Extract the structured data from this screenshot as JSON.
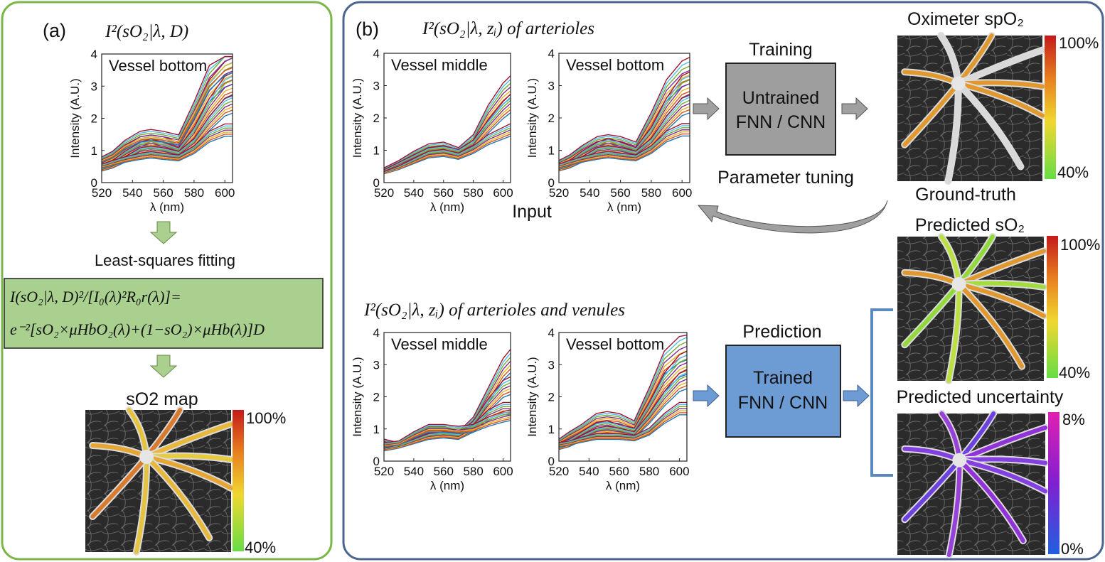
{
  "colors": {
    "panel_a": "#7ab648",
    "panel_b": "#4a6590",
    "gray_box": "#9e9e9e",
    "blue_box": "#6d9bd4",
    "formula_box": "#a9d08e",
    "arrow": "#a0a0a0",
    "green_arrow": "#a9d08e",
    "blue_arrow": "#6d9bd4",
    "bracket": "#5b8ac0"
  },
  "panel_a": {
    "label": "(a)",
    "formula_title": "I²(sO₂|λ, D)",
    "fitting_label": "Least-squares fitting",
    "formula_line1": "I(sO₂|λ, D)²/[I₀(λ)²R₀r(λ)]=",
    "formula_line2": "e⁻²[sO₂×μHbO₂(λ)+(1−sO₂)×μHb(λ)]D",
    "map_title": "sO2 map",
    "cb_top": "100%",
    "cb_bottom": "40%"
  },
  "panel_b": {
    "label": "(b)",
    "top_title": "I²(sO₂|λ, zᵢ) of arterioles",
    "bottom_title": "I²(sO₂|λ, zᵢ) of arterioles and venules",
    "input_label": "Input",
    "training_label": "Training",
    "untrained_line1": "Untrained",
    "untrained_line2": "FNN / CNN",
    "param_tuning": "Parameter tuning",
    "prediction_label": "Prediction",
    "trained_line1": "Trained",
    "trained_line2": "FNN / CNN",
    "oximeter_title": "Oximeter spO₂",
    "ground_truth": "Ground-truth",
    "pred_so2_title": "Predicted sO₂",
    "pred_unc_title": "Predicted uncertainty",
    "cb1_top": "100%",
    "cb1_bottom": "40%",
    "cb2_top": "100%",
    "cb2_bottom": "40%",
    "cb3_top": "8%",
    "cb3_bottom": "0%"
  },
  "chart_data": [
    {
      "id": "a_bottom",
      "type": "line",
      "title": "Vessel bottom",
      "xlabel": "λ (nm)",
      "ylabel": "Intensity (A.U.)",
      "xlim": [
        520,
        605
      ],
      "ylim": [
        0,
        4
      ],
      "x": [
        520,
        527,
        535,
        545,
        552,
        560,
        570,
        580,
        590,
        600,
        605
      ],
      "series": [
        {
          "values": [
            0.6,
            0.75,
            1.0,
            1.25,
            1.3,
            1.25,
            1.1,
            1.9,
            2.8,
            3.3,
            3.4
          ]
        },
        {
          "values": [
            0.5,
            0.6,
            0.85,
            1.1,
            1.2,
            1.1,
            0.95,
            1.5,
            2.3,
            2.9,
            3.0
          ]
        },
        {
          "values": [
            0.4,
            0.5,
            0.7,
            0.95,
            1.0,
            0.95,
            0.85,
            1.2,
            1.8,
            2.3,
            2.4
          ]
        },
        {
          "values": [
            0.5,
            0.6,
            0.7,
            0.8,
            0.85,
            0.8,
            0.75,
            1.0,
            1.4,
            1.6,
            1.6
          ]
        },
        {
          "values": [
            0.7,
            0.85,
            1.15,
            1.4,
            1.45,
            1.4,
            1.3,
            2.2,
            3.2,
            3.7,
            3.8
          ]
        }
      ]
    },
    {
      "id": "b_top_middle",
      "type": "line",
      "title": "Vessel middle",
      "xlabel": "λ (nm)",
      "ylabel": "Intensity (A.U.)",
      "xlim": [
        520,
        605
      ],
      "ylim": [
        0,
        4
      ],
      "x": [
        520,
        530,
        540,
        550,
        560,
        570,
        580,
        590,
        600,
        605
      ],
      "series": [
        {
          "values": [
            0.4,
            0.6,
            0.85,
            1.05,
            1.1,
            0.95,
            1.3,
            2.1,
            2.7,
            2.9
          ]
        },
        {
          "values": [
            0.35,
            0.55,
            0.75,
            0.95,
            1.0,
            0.9,
            1.15,
            1.7,
            2.2,
            2.4
          ]
        },
        {
          "values": [
            0.3,
            0.45,
            0.65,
            0.85,
            0.9,
            0.8,
            1.0,
            1.3,
            1.5,
            1.6
          ]
        }
      ]
    },
    {
      "id": "b_top_bottom",
      "type": "line",
      "title": "Vessel bottom",
      "xlabel": "λ (nm)",
      "ylabel": "Intensity (A.U.)",
      "xlim": [
        520,
        605
      ],
      "ylim": [
        0,
        4
      ],
      "x": [
        520,
        527,
        535,
        545,
        552,
        560,
        570,
        580,
        590,
        600,
        605
      ],
      "series": [
        {
          "values": [
            0.6,
            0.75,
            1.0,
            1.25,
            1.3,
            1.25,
            1.1,
            1.9,
            2.8,
            3.3,
            3.4
          ]
        },
        {
          "values": [
            0.5,
            0.6,
            0.85,
            1.1,
            1.2,
            1.1,
            0.95,
            1.5,
            2.3,
            2.9,
            3.0
          ]
        },
        {
          "values": [
            0.4,
            0.5,
            0.7,
            0.95,
            1.0,
            0.95,
            0.85,
            1.2,
            1.8,
            2.3,
            2.4
          ]
        },
        {
          "values": [
            0.5,
            0.6,
            0.7,
            0.8,
            0.85,
            0.8,
            0.75,
            1.0,
            1.4,
            1.6,
            1.6
          ]
        }
      ]
    },
    {
      "id": "b_bot_middle",
      "type": "line",
      "title": "Vessel middle",
      "xlabel": "λ (nm)",
      "ylabel": "Intensity (A.U.)",
      "xlim": [
        520,
        605
      ],
      "ylim": [
        0,
        4
      ],
      "x": [
        520,
        530,
        540,
        550,
        560,
        570,
        580,
        590,
        600,
        605
      ],
      "series": [
        {
          "values": [
            0.6,
            0.5,
            0.75,
            0.95,
            0.95,
            0.8,
            1.2,
            2.0,
            2.8,
            3.05
          ]
        },
        {
          "values": [
            0.4,
            0.5,
            0.7,
            0.85,
            0.85,
            0.75,
            1.1,
            1.7,
            2.2,
            2.3
          ]
        },
        {
          "values": [
            0.35,
            0.45,
            0.6,
            0.75,
            0.8,
            0.75,
            1.0,
            1.4,
            1.6,
            1.6
          ]
        },
        {
          "values": [
            0.5,
            0.55,
            0.8,
            1.0,
            1.0,
            0.95,
            1.0,
            1.2,
            1.35,
            1.4
          ]
        }
      ]
    },
    {
      "id": "b_bot_bottom",
      "type": "line",
      "title": "Vessel bottom",
      "xlabel": "λ (nm)",
      "ylabel": "Intensity (A.U.)",
      "xlim": [
        520,
        605
      ],
      "ylim": [
        0,
        4
      ],
      "x": [
        520,
        527,
        535,
        545,
        552,
        560,
        570,
        580,
        590,
        600,
        605
      ],
      "series": [
        {
          "values": [
            0.6,
            0.8,
            1.0,
            1.3,
            1.35,
            1.3,
            1.1,
            2.0,
            3.0,
            3.4,
            3.5
          ]
        },
        {
          "values": [
            0.5,
            0.6,
            0.8,
            1.05,
            1.1,
            1.0,
            0.9,
            1.6,
            2.4,
            2.9,
            3.0
          ]
        },
        {
          "values": [
            0.4,
            0.5,
            0.7,
            0.9,
            0.95,
            0.9,
            0.8,
            1.3,
            1.9,
            2.4,
            2.5
          ]
        },
        {
          "values": [
            0.5,
            0.55,
            0.65,
            0.75,
            0.75,
            0.75,
            0.7,
            0.9,
            1.3,
            1.6,
            1.6
          ]
        }
      ]
    }
  ]
}
